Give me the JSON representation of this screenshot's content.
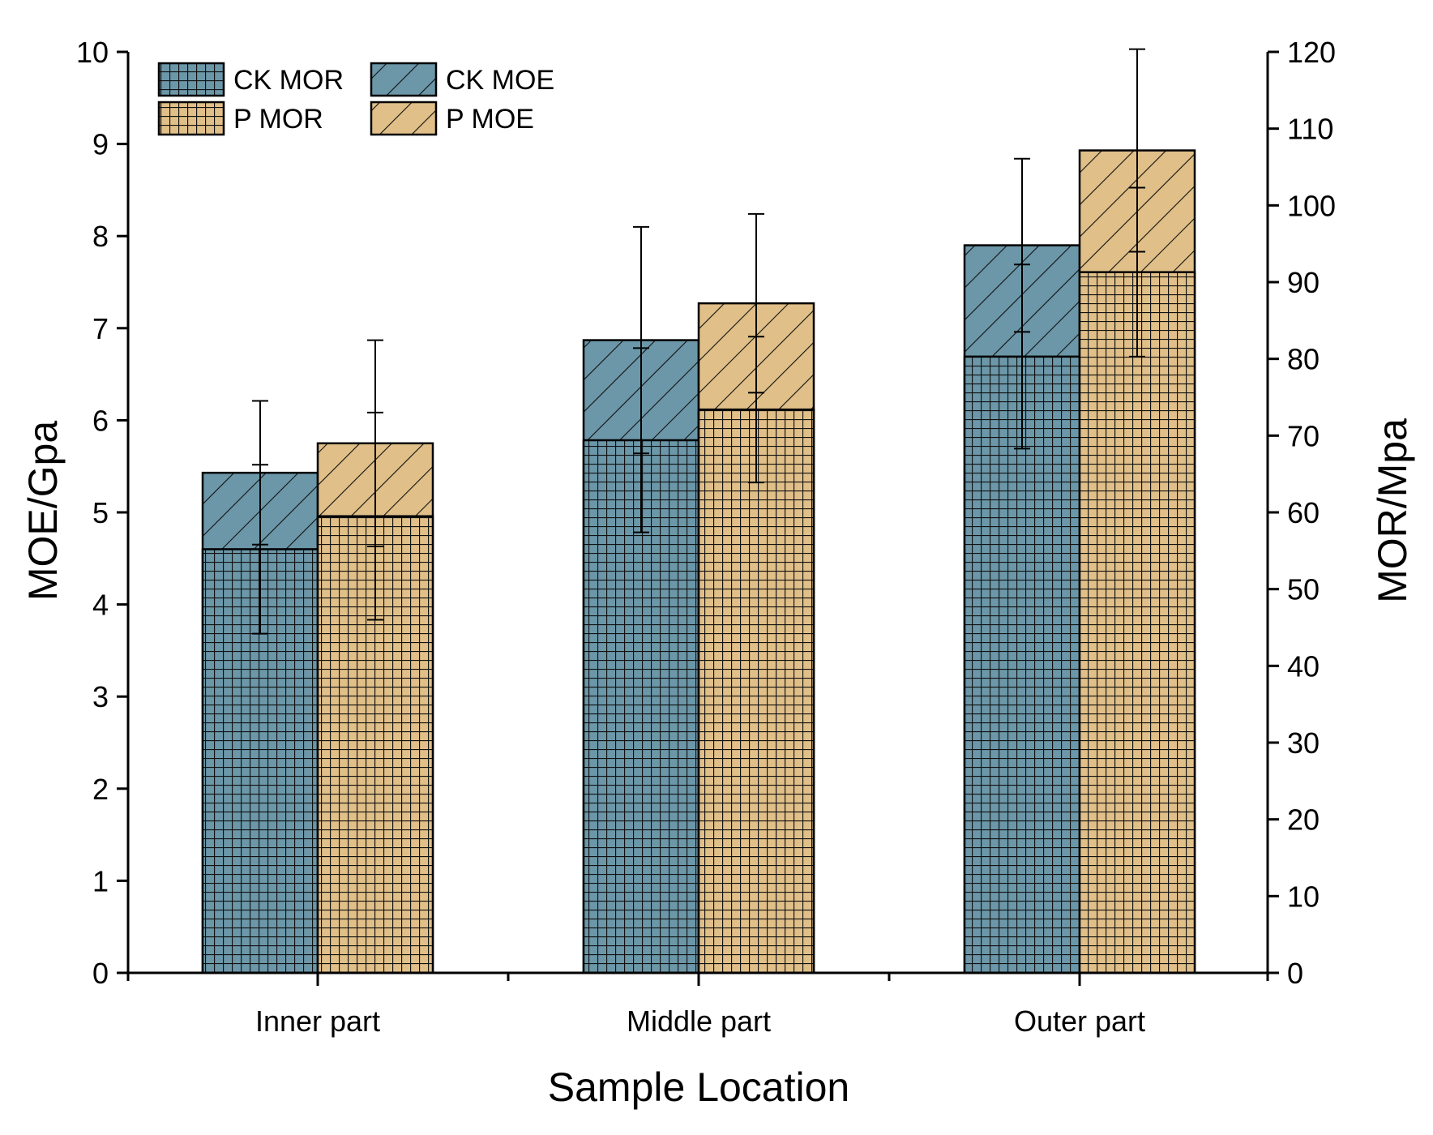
{
  "chart_data": {
    "type": "bar",
    "categories": [
      "Inner part",
      "Middle part",
      "Outer part"
    ],
    "xlabel": "Sample Location",
    "ylabel_left": "MOE/Gpa",
    "ylabel_right": "MOR/Mpa",
    "ylim_left": [
      0,
      10
    ],
    "ylim_right": [
      0,
      120
    ],
    "yticks_left": [
      "0",
      "1",
      "2",
      "3",
      "4",
      "5",
      "6",
      "7",
      "8",
      "9",
      "10"
    ],
    "yticks_right": [
      "0",
      "10",
      "20",
      "30",
      "40",
      "50",
      "60",
      "70",
      "80",
      "90",
      "100",
      "110",
      "120"
    ],
    "series": [
      {
        "name": "CK MOR",
        "group": "CK",
        "axis": "right",
        "pattern": "grid",
        "color": "#6b97a8",
        "values": [
          55.2,
          69.4,
          80.3
        ],
        "errors": [
          11,
          12,
          12
        ]
      },
      {
        "name": "P MOR",
        "group": "P",
        "axis": "right",
        "pattern": "grid",
        "color": "#e0bf88",
        "values": [
          59.5,
          73.4,
          91.3
        ],
        "errors": [
          13.5,
          9.5,
          11
        ]
      },
      {
        "name": "CK MOE",
        "group": "CK",
        "axis": "left",
        "pattern": "hatch",
        "color": "#6b97a8",
        "values": [
          5.43,
          6.87,
          7.9
        ],
        "errors": [
          0.78,
          1.23,
          0.94
        ]
      },
      {
        "name": "P MOE",
        "group": "P",
        "axis": "left",
        "pattern": "hatch",
        "color": "#e0bf88",
        "values": [
          5.75,
          7.27,
          8.93
        ],
        "errors": [
          1.12,
          0.97,
          1.1
        ]
      }
    ],
    "legend": {
      "position": "top-left",
      "items": [
        "CK MOR",
        "CK MOE",
        "P MOR",
        "P MOE"
      ]
    }
  }
}
